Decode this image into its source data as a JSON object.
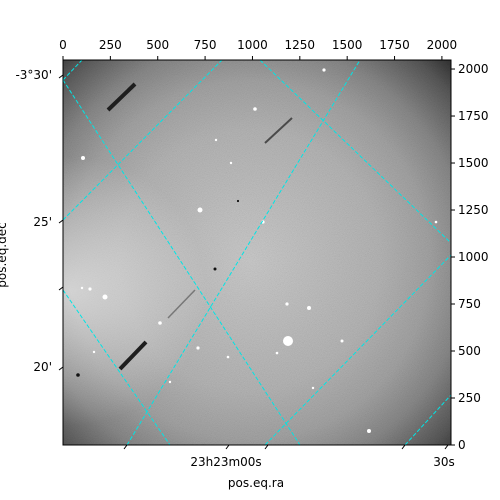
{
  "chart_data": {
    "type": "image",
    "description_units": "pixel",
    "x_pixel_axis": {
      "min": 0,
      "max": 2048,
      "ticks": [
        0,
        250,
        500,
        750,
        1000,
        1250,
        1500,
        1750,
        2000
      ],
      "tick_labels": [
        "0",
        "250",
        "500",
        "750",
        "1000",
        "1250",
        "1500",
        "1750",
        "2000"
      ]
    },
    "y_pixel_axis": {
      "min": 0,
      "max": 2048,
      "ticks": [
        0,
        250,
        500,
        750,
        1000,
        1250,
        1500,
        1750,
        2000
      ],
      "tick_labels": [
        "0",
        "250",
        "500",
        "750",
        "1000",
        "1250",
        "1500",
        "1750",
        "2000"
      ]
    },
    "ra_axis": {
      "label": "pos.eq.ra",
      "tick_labels": [
        "23h23m00s",
        "30s"
      ]
    },
    "dec_axis": {
      "label": "pos.eq.dec",
      "tick_labels": [
        "-3°30'",
        "25'",
        "20'"
      ]
    },
    "grid": true,
    "grid_color": "#00e5e5",
    "grid_style": "dashed",
    "colormap": "gray"
  }
}
